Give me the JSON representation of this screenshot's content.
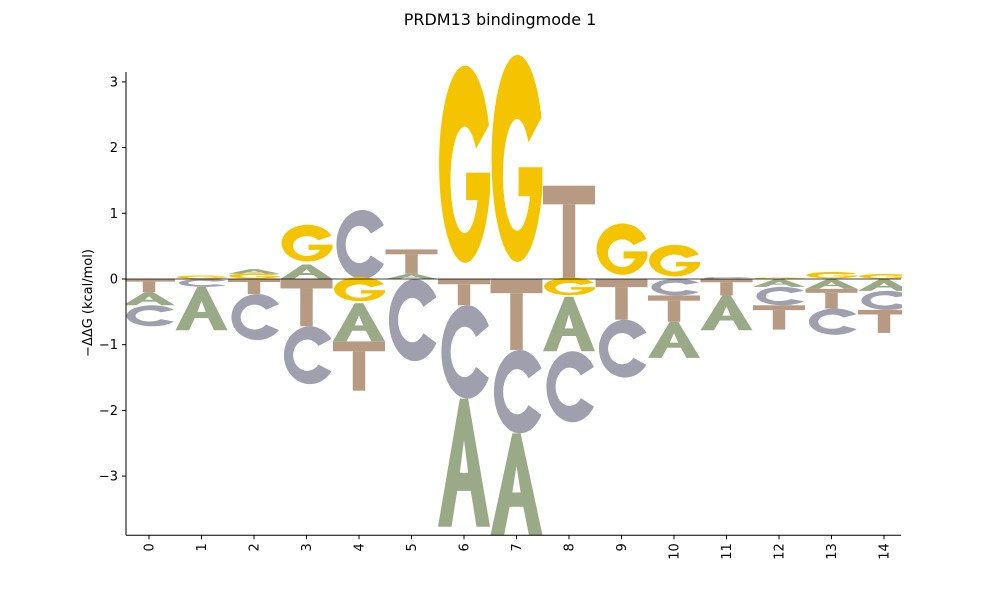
{
  "chart_data": {
    "type": "sequence-logo",
    "title": "PRDM13 bindingmode 1",
    "ylabel": "−ΔΔG (kcal/mol)",
    "xlabel": "",
    "ylim": [
      -3.9,
      3.15
    ],
    "yticks": [
      -3,
      -2,
      -1,
      0,
      1,
      2,
      3
    ],
    "ytick_labels": [
      "−3",
      "−2",
      "−1",
      "0",
      "1",
      "2",
      "3"
    ],
    "positions": [
      0,
      1,
      2,
      3,
      4,
      5,
      6,
      7,
      8,
      9,
      10,
      11,
      12,
      13,
      14
    ],
    "position_labels": [
      "0",
      "1",
      "2",
      "3",
      "4",
      "5",
      "6",
      "7",
      "8",
      "9",
      "10",
      "11",
      "12",
      "13",
      "14"
    ],
    "colors": {
      "A": "#9aaa87",
      "C": "#a09fae",
      "G": "#f5c400",
      "T": "#b69a82"
    },
    "letters": [
      [
        [
          "T",
          0,
          -0.2
        ],
        [
          "A",
          -0.2,
          -0.4
        ],
        [
          "C",
          -0.4,
          -0.72
        ]
      ],
      [
        [
          "G",
          0.05,
          0
        ],
        [
          "C",
          0,
          -0.12
        ],
        [
          "A",
          -0.12,
          -0.78
        ]
      ],
      [
        [
          "G",
          0.08,
          0
        ],
        [
          "A",
          0.15,
          0.08
        ],
        [
          "T",
          0,
          -0.23
        ],
        [
          "C",
          -0.23,
          -0.93
        ]
      ],
      [
        [
          "A",
          0.22,
          0
        ],
        [
          "G",
          0.78,
          0.22
        ],
        [
          "T",
          0,
          -0.72
        ],
        [
          "C",
          -0.72,
          -1.6
        ]
      ],
      [
        [
          "C",
          1.05,
          0
        ],
        [
          "G",
          0,
          -0.37
        ],
        [
          "A",
          -0.37,
          -0.95
        ],
        [
          "T",
          -0.95,
          -1.7
        ]
      ],
      [
        [
          "A",
          0.08,
          0
        ],
        [
          "T",
          0.45,
          0.08
        ],
        [
          "C",
          0,
          -1.25
        ]
      ],
      [
        [
          "G",
          3.0,
          0
        ],
        [
          "T",
          0,
          -0.4
        ],
        [
          "C",
          -0.4,
          -1.82
        ],
        [
          "A",
          -1.82,
          -3.77
        ]
      ],
      [
        [
          "G",
          3.15,
          0
        ],
        [
          "T",
          0,
          -1.08
        ],
        [
          "C",
          -1.08,
          -2.35
        ],
        [
          "A",
          -2.35,
          -3.9
        ]
      ],
      [
        [
          "T",
          1.42,
          0
        ],
        [
          "G",
          0,
          -0.27
        ],
        [
          "A",
          -0.27,
          -1.1
        ],
        [
          "C",
          -1.1,
          -2.18
        ]
      ],
      [
        [
          "G",
          0.78,
          0
        ],
        [
          "T",
          0,
          -0.62
        ],
        [
          "C",
          -0.62,
          -1.5
        ]
      ],
      [
        [
          "G",
          0.48,
          0
        ],
        [
          "C",
          0,
          -0.25
        ],
        [
          "T",
          -0.25,
          -0.65
        ],
        [
          "A",
          -0.65,
          -1.2
        ]
      ],
      [
        [
          "C",
          0.03,
          0
        ],
        [
          "T",
          0,
          -0.25
        ],
        [
          "A",
          -0.25,
          -0.78
        ]
      ],
      [
        [
          "G",
          0.02,
          0
        ],
        [
          "A",
          0,
          -0.12
        ],
        [
          "C",
          -0.12,
          -0.4
        ],
        [
          "T",
          -0.4,
          -0.77
        ]
      ],
      [
        [
          "G",
          0.1,
          0
        ],
        [
          "A",
          0,
          -0.15
        ],
        [
          "T",
          -0.15,
          -0.45
        ],
        [
          "C",
          -0.45,
          -0.85
        ]
      ],
      [
        [
          "G",
          0.07,
          0
        ],
        [
          "A",
          0,
          -0.18
        ],
        [
          "C",
          -0.18,
          -0.47
        ],
        [
          "T",
          -0.47,
          -0.82
        ]
      ]
    ]
  }
}
